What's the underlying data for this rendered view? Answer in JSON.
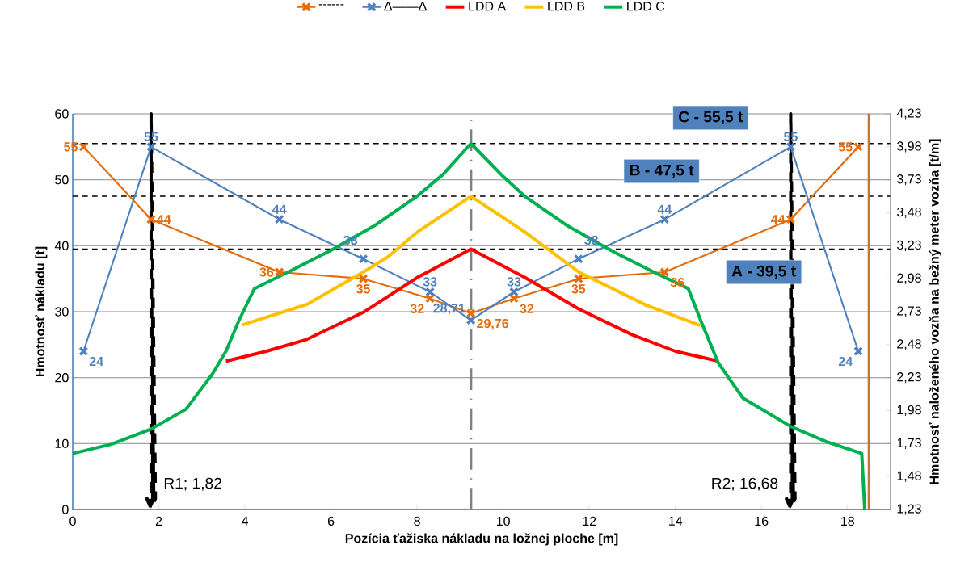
{
  "chart_data": {
    "type": "line",
    "xlabel": "Pozícia ťažiska nákladu na ložnej ploche [m]",
    "ylabel": "Hmotnosť nákladu [t]",
    "y2label": "Hmotnosť naloženého vozňa na bežný meter vozňa [t/m]",
    "xlim": [
      0,
      19
    ],
    "xticks": [
      0,
      2,
      4,
      6,
      8,
      10,
      12,
      14,
      16,
      18
    ],
    "ylim": [
      0,
      60
    ],
    "yticks": [
      0,
      10,
      20,
      30,
      40,
      50,
      60
    ],
    "y2lim": [
      1.23,
      4.23
    ],
    "y2ticks": [
      {
        "value": 1.23,
        "label": "1,23"
      },
      {
        "value": 1.48,
        "label": "1,48"
      },
      {
        "value": 1.73,
        "label": "1,73"
      },
      {
        "value": 1.98,
        "label": "1,98"
      },
      {
        "value": 2.23,
        "label": "2,23"
      },
      {
        "value": 2.48,
        "label": "2,48"
      },
      {
        "value": 2.73,
        "label": "2,73"
      },
      {
        "value": 2.98,
        "label": "2,98"
      },
      {
        "value": 3.23,
        "label": "3,23"
      },
      {
        "value": 3.48,
        "label": "3,48"
      },
      {
        "value": 3.73,
        "label": "3,73"
      },
      {
        "value": 3.98,
        "label": "3,98"
      },
      {
        "value": 4.23,
        "label": "4,23"
      }
    ],
    "grid": "y",
    "legend": "top",
    "series": [
      {
        "name": "------",
        "color": "#e46c0a",
        "marker": "cross",
        "x": [
          0.25,
          1.82,
          4.8,
          6.75,
          8.3,
          9.25,
          10.25,
          11.75,
          13.75,
          16.68,
          18.25
        ],
        "values": [
          55,
          44,
          36,
          35,
          32,
          29.76,
          32,
          35,
          36,
          44,
          55
        ],
        "value_labels": [
          "55",
          "44",
          "36",
          "35",
          "32",
          "29,76",
          "32",
          "35",
          "36",
          "44",
          "55"
        ]
      },
      {
        "name": "Δ——Δ",
        "color": "#4f81bd",
        "marker": "cross",
        "x": [
          0.25,
          1.82,
          4.8,
          6.75,
          8.3,
          9.25,
          10.25,
          11.75,
          13.75,
          16.68,
          18.25
        ],
        "values": [
          24,
          55,
          44,
          38,
          33,
          28.71,
          33,
          38,
          44,
          55,
          24
        ],
        "value_labels": [
          "24",
          "55",
          "44",
          "38",
          "33",
          "28,71",
          "33",
          "38",
          "44",
          "55",
          "24"
        ]
      },
      {
        "name": "LDD A",
        "color": "#ff0000",
        "marker": "none",
        "x": [
          3.56,
          4.5,
          5.44,
          6.75,
          8.01,
          9.25,
          10.5,
          11.76,
          13.0,
          14.0,
          15.0
        ],
        "values": [
          22.5,
          24.0,
          25.8,
          29.9,
          35.2,
          39.5,
          35.2,
          30.4,
          26.5,
          24.0,
          22.5
        ]
      },
      {
        "name": "LDD B",
        "color": "#ffc000",
        "marker": "none",
        "x": [
          3.94,
          5.44,
          6.75,
          7.32,
          8.01,
          9.25,
          10.5,
          11.76,
          13.32,
          14.58
        ],
        "values": [
          28.0,
          31.1,
          36.0,
          38.3,
          42.1,
          47.5,
          42.1,
          36.0,
          31.0,
          27.9
        ]
      },
      {
        "name": "LDD C",
        "color": "#00b050",
        "marker": "none",
        "x": [
          0,
          0.9,
          1.82,
          2.63,
          3.25,
          3.56,
          3.85,
          4.22,
          5.0,
          6.0,
          7.0,
          8.0,
          8.6,
          9.25,
          10.0,
          10.5,
          11.5,
          12.5,
          13.5,
          14.3,
          14.6,
          15.0,
          15.57,
          16.68,
          17.5,
          18.33,
          18.4
        ],
        "values": [
          8.5,
          9.9,
          12.2,
          15.2,
          20.6,
          24.0,
          28.5,
          33.5,
          36.0,
          39.3,
          43.0,
          47.5,
          50.8,
          55.5,
          50.5,
          47.5,
          43.0,
          39.3,
          36.0,
          33.5,
          28.5,
          22.2,
          16.9,
          12.6,
          10.3,
          8.5,
          0
        ]
      }
    ],
    "ref_lines": [
      {
        "axis": "y",
        "value": 55.5,
        "label": "C - 55,5 t",
        "color": "#000000",
        "line_style": "dashed"
      },
      {
        "axis": "y",
        "value": 47.5,
        "label": "B - 47,5 t",
        "color": "#000000",
        "line_style": "dashed"
      },
      {
        "axis": "y",
        "value": 39.5,
        "label": "A - 39,5 t",
        "color": "#000000",
        "line_style": "dashed"
      },
      {
        "axis": "x",
        "value": 1.82,
        "label": "R1; 1,82",
        "color": "#000000",
        "line_style": "dashed"
      },
      {
        "axis": "x",
        "value": 16.68,
        "label": "R2; 16,68",
        "color": "#000000",
        "line_style": "dashed"
      },
      {
        "axis": "x",
        "value": 9.25,
        "label": null,
        "color": "#808080",
        "line_style": "dashdot"
      },
      {
        "axis": "x",
        "value": 18.5,
        "label": null,
        "color": "#c0763a",
        "line_style": "solid"
      }
    ]
  }
}
